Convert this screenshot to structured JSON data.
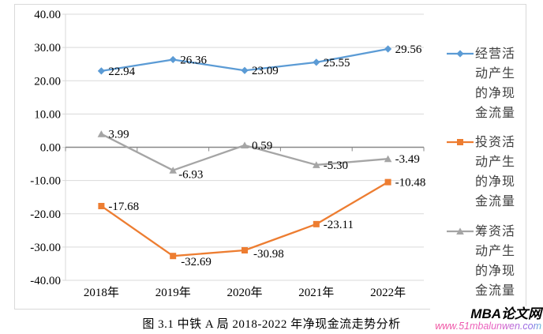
{
  "chart_data": {
    "type": "line",
    "categories": [
      "2018年",
      "2019年",
      "2020年",
      "2021年",
      "2022年"
    ],
    "series": [
      {
        "name": "经营活动产生的净现金流量",
        "color": "#5B9BD5",
        "marker": "diamond",
        "values": [
          22.94,
          26.36,
          23.09,
          25.55,
          29.56
        ],
        "labels": [
          "22.94",
          "26.36",
          "23.09",
          "25.55",
          "29.56"
        ]
      },
      {
        "name": "投资活动产生的净现金流量",
        "color": "#ED7D31",
        "marker": "square",
        "values": [
          -17.68,
          -32.69,
          -30.98,
          -23.11,
          -10.48
        ],
        "labels": [
          "-17.68",
          "-32.69",
          "-30.98",
          "-23.11",
          "-10.48"
        ]
      },
      {
        "name": "筹资活动产生的净现金流量",
        "color": "#A5A5A5",
        "marker": "triangle",
        "values": [
          3.99,
          -6.93,
          0.59,
          -5.3,
          -3.49
        ],
        "labels": [
          "3.99",
          "-6.93",
          "0.59",
          "-5.30",
          "-3.49"
        ]
      }
    ],
    "y_ticks": [
      "40.00",
      "30.00",
      "20.00",
      "10.00",
      "0.00",
      "-10.00",
      "-20.00",
      "-30.00",
      "-40.00"
    ],
    "ylim": [
      -40,
      40
    ],
    "grid": true,
    "grid_color": "#D9D9D9",
    "zero_line_color": "#878787",
    "legend_position": "right",
    "xlabel": "",
    "ylabel": "",
    "title": ""
  },
  "caption": "图 3.1 中铁 A 局 2018-2022 年净现金流走势分析",
  "watermark": {
    "brand": "MBA论文网",
    "url": "www.51mbalunwen.com"
  }
}
